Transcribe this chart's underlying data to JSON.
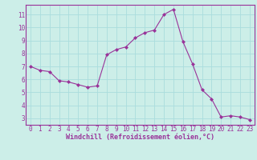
{
  "x": [
    0,
    1,
    2,
    3,
    4,
    5,
    6,
    7,
    8,
    9,
    10,
    11,
    12,
    13,
    14,
    15,
    16,
    17,
    18,
    19,
    20,
    21,
    22,
    23
  ],
  "y": [
    7.0,
    6.7,
    6.6,
    5.9,
    5.8,
    5.6,
    5.4,
    5.5,
    7.9,
    8.3,
    8.5,
    9.2,
    9.6,
    9.8,
    11.0,
    11.4,
    8.9,
    7.2,
    5.2,
    4.5,
    3.1,
    3.2,
    3.1,
    2.9
  ],
  "line_color": "#993399",
  "marker": "D",
  "marker_size": 2.0,
  "bg_color": "#cceee8",
  "grid_color": "#aadddd",
  "xlabel": "Windchill (Refroidissement éolien,°C)",
  "xlabel_color": "#993399",
  "tick_color": "#993399",
  "spine_color": "#993399",
  "ylabel_ticks": [
    3,
    4,
    5,
    6,
    7,
    8,
    9,
    10,
    11
  ],
  "xlim": [
    -0.5,
    23.5
  ],
  "ylim": [
    2.5,
    11.75
  ],
  "xticks": [
    0,
    1,
    2,
    3,
    4,
    5,
    6,
    7,
    8,
    9,
    10,
    11,
    12,
    13,
    14,
    15,
    16,
    17,
    18,
    19,
    20,
    21,
    22,
    23
  ],
  "label_fontsize": 6.0,
  "tick_fontsize": 5.5
}
